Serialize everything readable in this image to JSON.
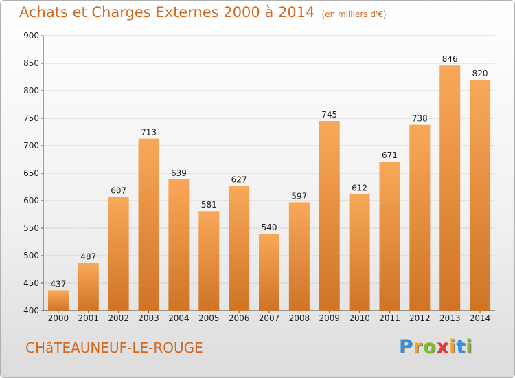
{
  "chart_data": {
    "type": "bar",
    "title": "Achats et Charges Externes 2000 à 2014",
    "subtitle": "(en milliers d'€)",
    "categories": [
      "2000",
      "2001",
      "2002",
      "2003",
      "2004",
      "2005",
      "2006",
      "2007",
      "2008",
      "2009",
      "2010",
      "2011",
      "2012",
      "2013",
      "2014"
    ],
    "values": [
      437,
      487,
      607,
      713,
      639,
      581,
      627,
      540,
      597,
      745,
      612,
      671,
      738,
      846,
      820
    ],
    "ylim": [
      400,
      900
    ],
    "yticks": [
      400,
      450,
      500,
      550,
      600,
      650,
      700,
      750,
      800,
      850,
      900
    ],
    "grid": true,
    "bar_color_top": "#f9a85a",
    "bar_color_bottom": "#cf7425"
  },
  "footer": {
    "commune": "CHâTEAUNEUF-LE-ROUGE",
    "logo_letters": [
      {
        "ch": "P",
        "color": "#3a8fd8"
      },
      {
        "ch": "r",
        "color": "#f5a21c"
      },
      {
        "ch": "o",
        "color": "#7bbf2a"
      },
      {
        "ch": "x",
        "color": "#e8353a"
      },
      {
        "ch": "i",
        "color": "#f5a21c"
      },
      {
        "ch": "t",
        "color": "#3a8fd8"
      },
      {
        "ch": "i",
        "color": "#7bbf2a"
      }
    ]
  }
}
